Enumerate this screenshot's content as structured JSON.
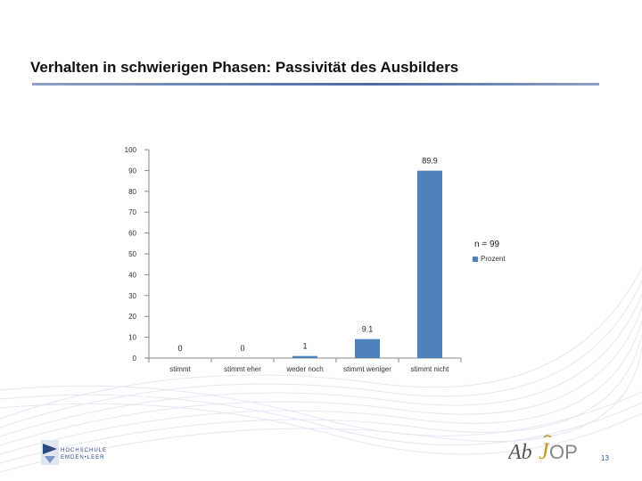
{
  "slide": {
    "title": "Verhalten in schwierigen Phasen: Passivität des Ausbilders",
    "page_number": "13",
    "logo_left_tagline": "...",
    "logo_left_line1": "HOCHSCHULE",
    "logo_left_line2": "EMDEN•LEER",
    "logo_right_text": "AbJOP"
  },
  "legend": {
    "n_label": "n = 99",
    "series_label": "Prozent"
  },
  "colors": {
    "bar": "#4f81bd",
    "axis": "#888888",
    "title_rule": "#4f6aa3"
  },
  "chart_data": {
    "type": "bar",
    "title": "",
    "xlabel": "",
    "ylabel": "",
    "ylim": [
      0,
      100
    ],
    "yticks": [
      0,
      10,
      20,
      30,
      40,
      50,
      60,
      70,
      80,
      90,
      100
    ],
    "categories": [
      "stimmt",
      "stimmt eher",
      "weder noch",
      "stimmt weniger",
      "stimmt nicht"
    ],
    "series": [
      {
        "name": "Prozent",
        "values": [
          0,
          0,
          1,
          9.1,
          89.9
        ]
      }
    ],
    "data_labels": [
      "0",
      "0",
      "1",
      "9.1",
      "89.9"
    ],
    "legend_position": "right",
    "grid": false
  }
}
